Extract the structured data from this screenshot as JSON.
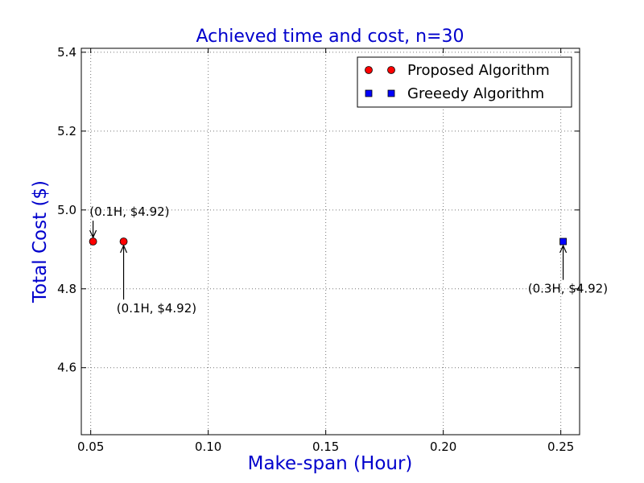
{
  "chart_data": {
    "type": "scatter",
    "title": "Achieved time and cost, n=30",
    "xlabel": "Make-span (Hour)",
    "ylabel": "Total Cost ($)",
    "xlim": [
      0.046,
      0.258
    ],
    "ylim": [
      4.43,
      5.41
    ],
    "xticks": [
      0.05,
      0.1,
      0.15,
      0.2,
      0.25
    ],
    "xtick_labels": [
      "0.05",
      "0.10",
      "0.15",
      "0.20",
      "0.25"
    ],
    "yticks": [
      4.6,
      4.8,
      5.0,
      5.2,
      5.4
    ],
    "ytick_labels": [
      "4.6",
      "4.8",
      "5.0",
      "5.2",
      "5.4"
    ],
    "grid": true,
    "legend_position": "top-right",
    "series": [
      {
        "name": "Proposed Algorithm",
        "marker": "circle",
        "color": "#ff0000",
        "points": [
          {
            "x": 0.051,
            "y": 4.92
          },
          {
            "x": 0.064,
            "y": 4.92
          }
        ]
      },
      {
        "name": "Greeedy Algorithm",
        "marker": "square",
        "color": "#0000ff",
        "points": [
          {
            "x": 0.251,
            "y": 4.92
          }
        ]
      }
    ],
    "annotations": [
      {
        "text": "(0.1H, $4.92)",
        "x": 0.051,
        "y": 4.92,
        "text_x": 0.0495,
        "text_y": 4.985
      },
      {
        "text": "(0.1H, $4.92)",
        "x": 0.064,
        "y": 4.92,
        "text_x": 0.061,
        "text_y": 4.74
      },
      {
        "text": "(0.3H, $4.92)",
        "x": 0.251,
        "y": 4.92,
        "text_x": 0.236,
        "text_y": 4.79
      }
    ]
  }
}
